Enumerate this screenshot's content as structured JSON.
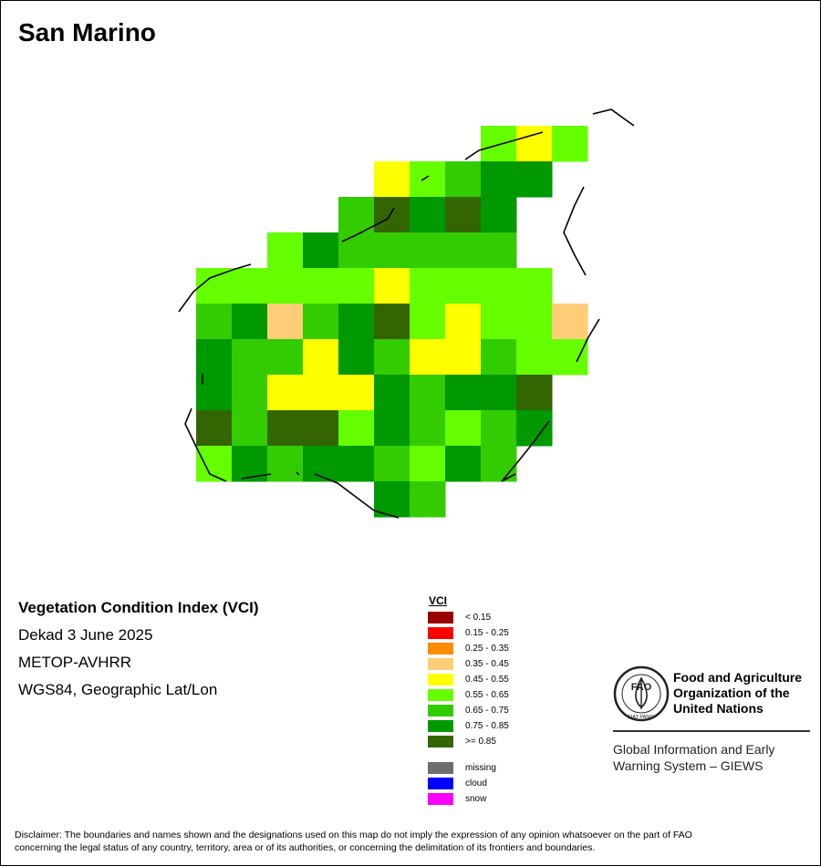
{
  "map": {
    "title": "San Marino",
    "grid": {
      "rows": [
        [
          null,
          null,
          null,
          null,
          null,
          null,
          null,
          null,
          null,
          "0.55 - 0.65",
          "0.45 - 0.55",
          "0.55 - 0.65"
        ],
        [
          null,
          null,
          null,
          null,
          null,
          null,
          "0.45 - 0.55",
          "0.55 - 0.65",
          "0.65 - 0.75",
          "0.75 - 0.85",
          "0.75 - 0.85",
          null
        ],
        [
          null,
          null,
          null,
          null,
          null,
          "0.65 - 0.75",
          ">= 0.85",
          "0.75 - 0.85",
          ">= 0.85",
          "0.75 - 0.85",
          null,
          null
        ],
        [
          null,
          null,
          null,
          "0.55 - 0.65",
          "0.75 - 0.85",
          "0.65 - 0.75",
          "0.65 - 0.75",
          "0.65 - 0.75",
          "0.65 - 0.75",
          "0.65 - 0.75",
          null,
          null
        ],
        [
          null,
          "0.55 - 0.65",
          "0.55 - 0.65",
          "0.55 - 0.65",
          "0.55 - 0.65",
          "0.55 - 0.65",
          "0.45 - 0.55",
          "0.55 - 0.65",
          "0.55 - 0.65",
          "0.55 - 0.65",
          "0.55 - 0.65",
          null
        ],
        [
          null,
          "0.65 - 0.75",
          "0.75 - 0.85",
          "0.35 - 0.45",
          "0.65 - 0.75",
          "0.75 - 0.85",
          ">= 0.85",
          "0.55 - 0.65",
          "0.45 - 0.55",
          "0.55 - 0.65",
          "0.55 - 0.65",
          "0.35 - 0.45"
        ],
        [
          null,
          "0.75 - 0.85",
          "0.65 - 0.75",
          "0.65 - 0.75",
          "0.45 - 0.55",
          "0.75 - 0.85",
          "0.65 - 0.75",
          "0.45 - 0.55",
          "0.45 - 0.55",
          "0.65 - 0.75",
          "0.55 - 0.65",
          "0.55 - 0.65"
        ],
        [
          null,
          "0.75 - 0.85",
          "0.65 - 0.75",
          "0.45 - 0.55",
          "0.45 - 0.55",
          "0.45 - 0.55",
          "0.75 - 0.85",
          "0.65 - 0.75",
          "0.75 - 0.85",
          "0.75 - 0.85",
          ">= 0.85",
          null
        ],
        [
          null,
          ">= 0.85",
          "0.65 - 0.75",
          ">= 0.85",
          ">= 0.85",
          "0.55 - 0.65",
          "0.75 - 0.85",
          "0.65 - 0.75",
          "0.55 - 0.65",
          "0.65 - 0.75",
          "0.75 - 0.85",
          null
        ],
        [
          null,
          "0.55 - 0.65",
          "0.75 - 0.85",
          "0.65 - 0.75",
          "0.75 - 0.85",
          "0.75 - 0.85",
          "0.65 - 0.75",
          "0.55 - 0.65",
          "0.75 - 0.85",
          "0.65 - 0.75",
          null,
          null
        ],
        [
          null,
          null,
          null,
          null,
          null,
          null,
          "0.75 - 0.85",
          "0.65 - 0.75",
          null,
          null,
          null,
          null
        ]
      ]
    }
  },
  "info": {
    "product": "Vegetation Condition Index (VCI)",
    "period": "Dekad 3 June 2025",
    "sensor": "METOP-AVHRR",
    "projection": "WGS84, Geographic Lat/Lon"
  },
  "legend": {
    "title": "VCI",
    "classes": [
      {
        "label": "< 0.15",
        "color": "#990000"
      },
      {
        "label": "0.15 - 0.25",
        "color": "#ff0000"
      },
      {
        "label": "0.25 - 0.35",
        "color": "#ff8c00"
      },
      {
        "label": "0.35 - 0.45",
        "color": "#ffcc77"
      },
      {
        "label": "0.45 - 0.55",
        "color": "#ffff00"
      },
      {
        "label": "0.55 - 0.65",
        "color": "#66ff00"
      },
      {
        "label": "0.65 - 0.75",
        "color": "#33cc00"
      },
      {
        "label": "0.75 - 0.85",
        "color": "#009900"
      },
      {
        "label": ">= 0.85",
        "color": "#336600"
      }
    ],
    "special": [
      {
        "label": "missing",
        "color": "#6e6e6e"
      },
      {
        "label": "cloud",
        "color": "#0000ff"
      },
      {
        "label": "snow",
        "color": "#ff00ff"
      }
    ]
  },
  "organization": {
    "logo_text": "FAO",
    "logo_motto": "FIAT PANIS",
    "name_line1": "Food and Agriculture",
    "name_line2": "Organization of the",
    "name_line3": "United Nations",
    "system_line1": "Global Information and Early",
    "system_line2": "Warning System – GIEWS"
  },
  "disclaimer": {
    "line1": "Disclaimer: The boundaries and names shown and the designations used on this map do not imply the expression of any opinion whatsoever on the part of FAO",
    "line2": "concerning the legal status of any country, territory, area or of its authorities, or concerning the delimitation of its frontiers and boundaries."
  }
}
